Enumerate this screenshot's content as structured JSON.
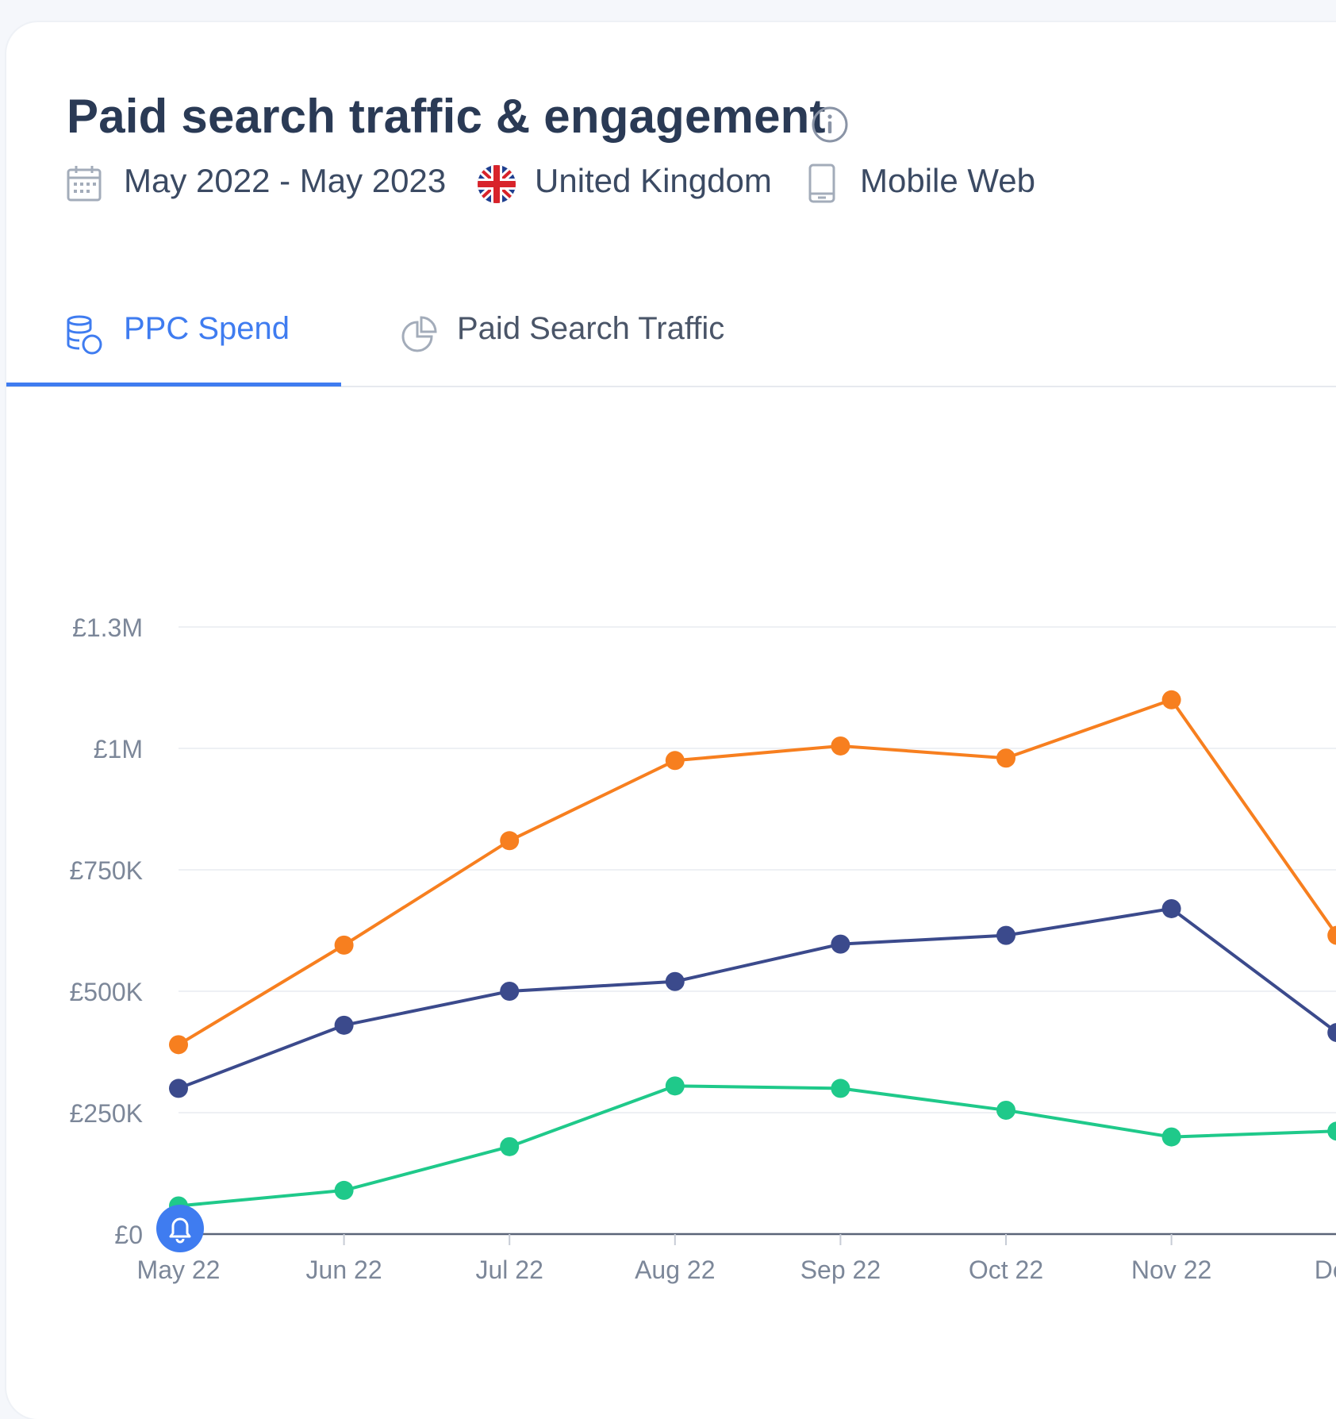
{
  "header": {
    "title": "Paid search traffic & engagement",
    "info_icon": "info-icon",
    "date_range": "May 2022 - May 2023",
    "country": "United Kingdom",
    "device": "Mobile Web"
  },
  "icons": {
    "calendar": "calendar-icon",
    "flag": "uk-flag-icon",
    "device": "mobile-icon",
    "spend": "coins-icon",
    "traffic": "pie-chart-icon",
    "alert": "bell-icon"
  },
  "tabs": [
    {
      "label": "PPC Spend",
      "active": true
    },
    {
      "label": "Paid Search Traffic",
      "active": false
    }
  ],
  "colors": {
    "accent": "#3f7cf0",
    "orange": "#f77f1f",
    "navy": "#3b4a8c",
    "green": "#1fc98a",
    "grid": "#eef0f4",
    "tick": "#7c8799"
  },
  "chart_data": {
    "type": "line",
    "x": [
      "May 22",
      "Jun 22",
      "Jul 22",
      "Aug 22",
      "Sep 22",
      "Oct 22",
      "Nov 22",
      "Dec"
    ],
    "y_ticks": [
      "£0",
      "£250K",
      "£500K",
      "£750K",
      "£1M",
      "£1.3M"
    ],
    "y_tick_values": [
      0,
      250000,
      500000,
      750000,
      1000000,
      1250000
    ],
    "ylim": [
      0,
      1250000
    ],
    "grid": true,
    "series": [
      {
        "color": "#f77f1f",
        "values": [
          390000,
          595000,
          810000,
          975000,
          1005000,
          980000,
          1100000,
          615000
        ]
      },
      {
        "color": "#3b4a8c",
        "values": [
          300000,
          430000,
          500000,
          520000,
          597000,
          615000,
          670000,
          415000
        ]
      },
      {
        "color": "#1fc98a",
        "values": [
          58000,
          90000,
          180000,
          305000,
          300000,
          255000,
          200000,
          212000
        ]
      }
    ]
  }
}
